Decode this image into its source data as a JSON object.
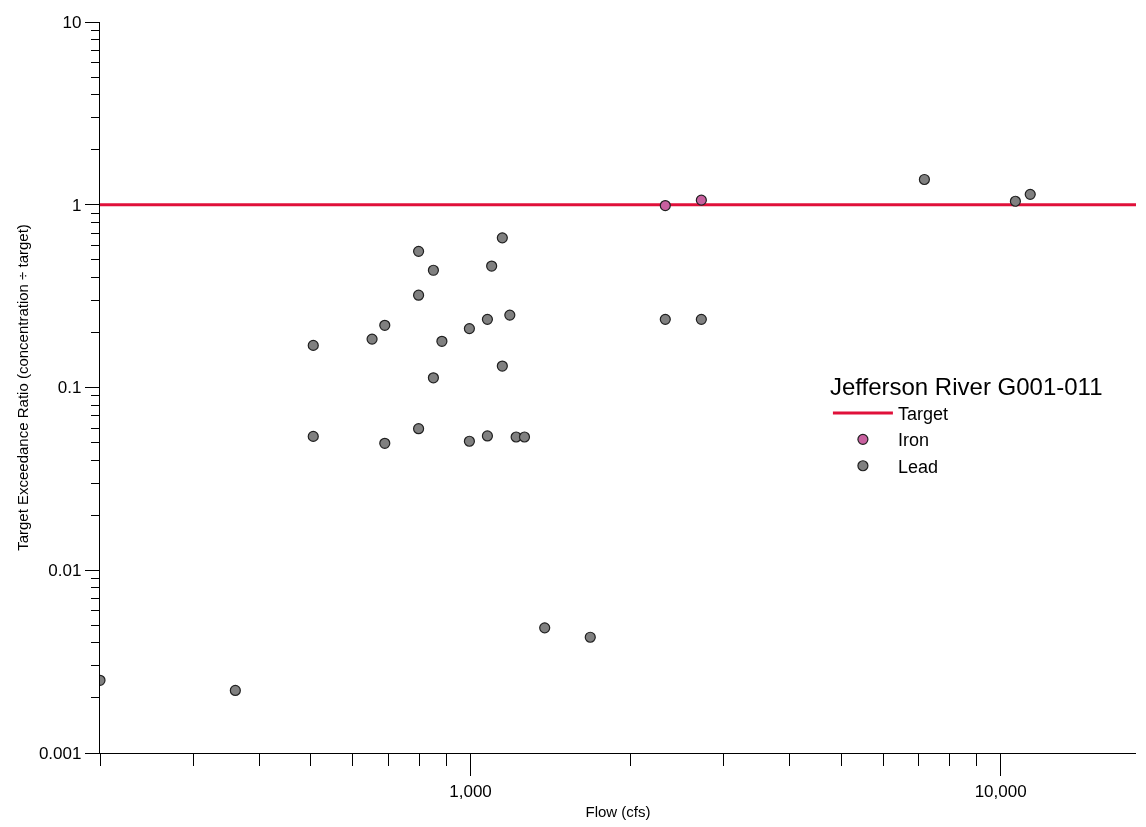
{
  "chart_data": {
    "type": "scatter",
    "xlabel": "Flow (cfs)",
    "ylabel": "Target Exceedance Ratio (concentration ÷ target)",
    "legend_title": "Jefferson River G001-011",
    "log": "xy",
    "legend": "right",
    "marker": "circle",
    "xlim": [
      200,
      18000
    ],
    "xticks": [
      {
        "value": 200,
        "label": null
      },
      {
        "value": 300,
        "label": null
      },
      {
        "value": 400,
        "label": null
      },
      {
        "value": 500,
        "label": null
      },
      {
        "value": 600,
        "label": null
      },
      {
        "value": 700,
        "label": null
      },
      {
        "value": 800,
        "label": null
      },
      {
        "value": 900,
        "label": null
      },
      {
        "value": 1000,
        "label": "1,000"
      },
      {
        "value": 2000,
        "label": null
      },
      {
        "value": 3000,
        "label": null
      },
      {
        "value": 4000,
        "label": null
      },
      {
        "value": 5000,
        "label": null
      },
      {
        "value": 6000,
        "label": null
      },
      {
        "value": 7000,
        "label": null
      },
      {
        "value": 8000,
        "label": null
      },
      {
        "value": 9000,
        "label": null
      },
      {
        "value": 10000,
        "label": "10,000"
      }
    ],
    "ylim": [
      0.001,
      10
    ],
    "yticks": [
      0.001,
      {
        "value": 0.002,
        "label": null
      },
      {
        "value": 0.003,
        "label": null
      },
      {
        "value": 0.004,
        "label": null
      },
      {
        "value": 0.005,
        "label": null
      },
      {
        "value": 0.006,
        "label": null
      },
      {
        "value": 0.007,
        "label": null
      },
      {
        "value": 0.008,
        "label": null
      },
      {
        "value": 0.009,
        "label": null
      },
      0.01,
      {
        "value": 0.02,
        "label": null
      },
      {
        "value": 0.03,
        "label": null
      },
      {
        "value": 0.04,
        "label": null
      },
      {
        "value": 0.05,
        "label": null
      },
      {
        "value": 0.06,
        "label": null
      },
      {
        "value": 0.07,
        "label": null
      },
      {
        "value": 0.08,
        "label": null
      },
      {
        "value": 0.09,
        "label": null
      },
      0.1,
      {
        "value": 0.2,
        "label": null
      },
      {
        "value": 0.3,
        "label": null
      },
      {
        "value": 0.4,
        "label": null
      },
      {
        "value": 0.5,
        "label": null
      },
      {
        "value": 0.6,
        "label": null
      },
      {
        "value": 0.7,
        "label": null
      },
      {
        "value": 0.8,
        "label": null
      },
      {
        "value": 0.9,
        "label": null
      },
      1,
      {
        "value": 2,
        "label": null
      },
      {
        "value": 3,
        "label": null
      },
      {
        "value": 4,
        "label": null
      },
      {
        "value": 5,
        "label": null
      },
      {
        "value": 6,
        "label": null
      },
      {
        "value": 7,
        "label": null
      },
      {
        "value": 8,
        "label": null
      },
      {
        "value": 9,
        "label": null
      },
      10
    ],
    "ref_lines": [
      {
        "axis": "y",
        "value": 1,
        "label": "Target",
        "color": "#e0103a",
        "line_style": "solid"
      }
    ],
    "series": [
      {
        "name": "Iron",
        "color": "#c8609f",
        "x": [
          2330,
          2725
        ],
        "values": [
          0.99,
          1.06
        ]
      },
      {
        "name": "Lead",
        "color": "#808080",
        "x": [
          200,
          360,
          505,
          505,
          652,
          689,
          689,
          798,
          798,
          798,
          851,
          851,
          883,
          995,
          995,
          1076,
          1076,
          1096,
          1148,
          1148,
          1186,
          1219,
          1264,
          1380,
          1682,
          2330,
          2725,
          7180,
          10660,
          11370
        ],
        "values": [
          0.0025,
          0.0022,
          0.17,
          0.054,
          0.184,
          0.219,
          0.0495,
          0.556,
          0.32,
          0.0595,
          0.438,
          0.113,
          0.179,
          0.21,
          0.0508,
          0.236,
          0.0543,
          0.462,
          0.659,
          0.131,
          0.249,
          0.0536,
          0.0536,
          0.00484,
          0.0043,
          0.236,
          0.236,
          1.375,
          1.045,
          1.14
        ]
      }
    ]
  }
}
